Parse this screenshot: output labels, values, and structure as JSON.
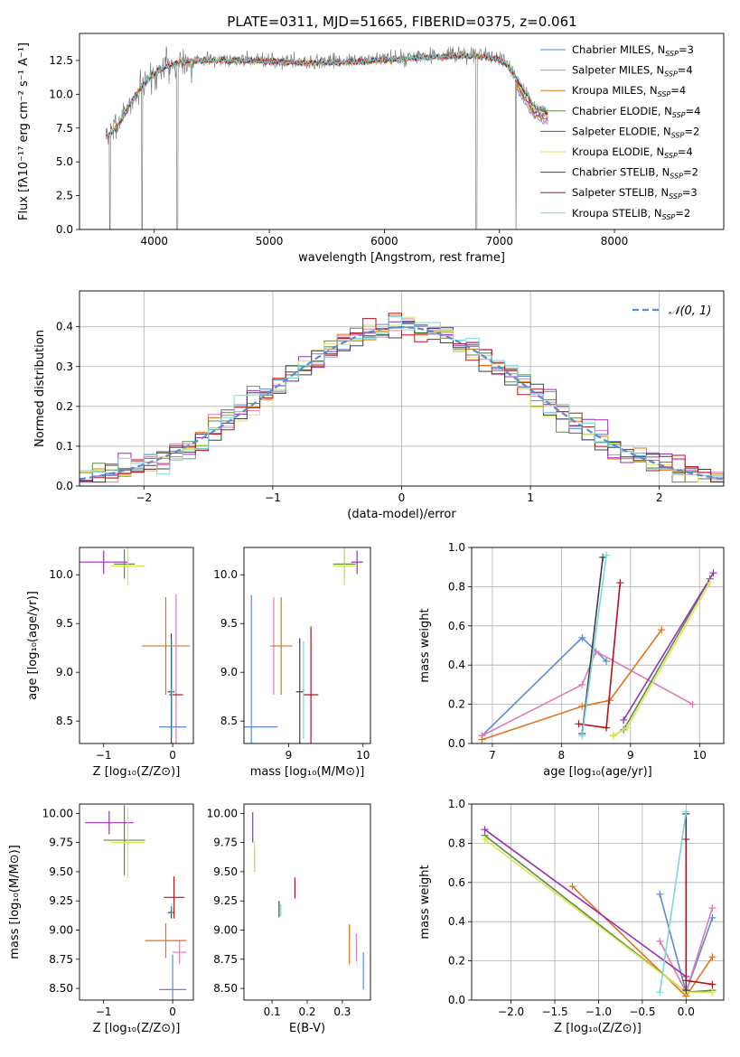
{
  "figure": {
    "title": "PLATE=0311, MJD=51665, FIBERID=0375, z=0.061"
  },
  "colors": {
    "Chabrier MILES": "#5b8ad6",
    "Salpeter MILES": "#e27ab8",
    "Kroupa MILES": "#e0761c",
    "Chabrier ELODIE": "#5e8a4e",
    "Salpeter ELODIE": "#9a2fb5",
    "Kroupa ELODIE": "#d9e84f",
    "Chabrier STELIB": "#404040",
    "Salpeter STELIB": "#b5121b",
    "Kroupa STELIB": "#7ad8dc",
    "data": "#808080",
    "normal": "#5b8ad6"
  },
  "chart_data": [
    {
      "id": "spectrum",
      "type": "line",
      "xlabel": "wavelength [Angstrom, rest frame]",
      "ylabel": "Flux [fλ10⁻¹⁷ erg cm⁻² s⁻¹ A⁻¹]",
      "xlim": [
        3350,
        8950
      ],
      "ylim": [
        0,
        14.5
      ],
      "xticks": [
        4000,
        5000,
        6000,
        7000,
        8000
      ],
      "yticks": [
        0.0,
        2.5,
        5.0,
        7.5,
        10.0,
        12.5
      ],
      "legend": "top-right",
      "legend_entries": [
        {
          "model": "Chabrier MILES",
          "nssp": "3"
        },
        {
          "model": "Salpeter MILES",
          "nssp": "4"
        },
        {
          "model": "Kroupa MILES",
          "nssp": "4"
        },
        {
          "model": "Chabrier ELODIE",
          "nssp": "4"
        },
        {
          "model": "Salpeter ELODIE",
          "nssp": "2"
        },
        {
          "model": "Kroupa ELODIE",
          "nssp": "4"
        },
        {
          "model": "Chabrier STELIB",
          "nssp": "2"
        },
        {
          "model": "Salpeter STELIB",
          "nssp": "3"
        },
        {
          "model": "Kroupa STELIB",
          "nssp": "2"
        }
      ],
      "continuum": {
        "wavelength": [
          3600,
          3700,
          3800,
          3900,
          4000,
          4100,
          4200,
          4300,
          4500,
          4700,
          5000,
          5300,
          5600,
          6000,
          6400,
          6600,
          6800,
          7000,
          7100,
          7200,
          7300,
          7420
        ],
        "flux": [
          7.0,
          8.0,
          9.5,
          10.8,
          11.6,
          12.1,
          12.4,
          12.5,
          12.6,
          12.6,
          12.5,
          12.4,
          12.4,
          12.6,
          12.8,
          12.9,
          12.9,
          12.7,
          12.0,
          10.3,
          9.0,
          8.5
        ]
      }
    },
    {
      "id": "residuals",
      "type": "histogram",
      "xlabel": "(data-model)/error",
      "ylabel": "Normed distribution",
      "xlim": [
        -2.5,
        2.5
      ],
      "ylim": [
        0,
        0.49
      ],
      "xticks": [
        -2,
        -1,
        0,
        1,
        2
      ],
      "yticks": [
        0.0,
        0.1,
        0.2,
        0.3,
        0.4
      ],
      "legend": "top-right",
      "normal_label": "𝒩(0, 1)",
      "bins": 50,
      "grid": true
    },
    {
      "id": "age_vs_Z",
      "type": "errorbar",
      "xlabel": "Z [log₁₀(Z/Z⊙)]",
      "ylabel": "age  [log₁₀(age/yr)]",
      "xlim": [
        -1.35,
        0.3
      ],
      "ylim": [
        8.27,
        10.28
      ],
      "xticks": [
        -1,
        0
      ],
      "yticks": [
        8.5,
        9.0,
        9.5,
        10.0
      ],
      "points": [
        {
          "model": "Chabrier MILES",
          "x": 0.0,
          "y": 8.44,
          "xerr": 0.2,
          "yerr": 0.0
        },
        {
          "model": "Salpeter MILES",
          "x": 0.05,
          "y": 8.8,
          "xerr": 0.0,
          "yerr": 1.0
        },
        {
          "model": "Kroupa MILES",
          "x": -0.1,
          "y": 9.27,
          "xerr": 0.35,
          "yerr": 0.5
        },
        {
          "model": "Chabrier ELODIE",
          "x": -0.7,
          "y": 10.11,
          "xerr": 0.15,
          "yerr": 0.15
        },
        {
          "model": "Salpeter ELODIE",
          "x": -1.0,
          "y": 10.13,
          "xerr": 0.35,
          "yerr": 0.12
        },
        {
          "model": "Kroupa ELODIE",
          "x": -0.65,
          "y": 10.09,
          "xerr": 0.25,
          "yerr": 0.2
        },
        {
          "model": "Chabrier STELIB",
          "x": -0.02,
          "y": 8.8,
          "xerr": 0.05,
          "yerr": 0.6
        },
        {
          "model": "Salpeter STELIB",
          "x": 0.05,
          "y": 8.77,
          "xerr": 0.1,
          "yerr": 0.0
        },
        {
          "model": "Kroupa STELIB",
          "x": -0.01,
          "y": 8.82,
          "xerr": 0.02,
          "yerr": 0.5
        }
      ]
    },
    {
      "id": "age_vs_mass",
      "type": "errorbar",
      "xlabel": "mass [log₁₀(M/M⊙)]",
      "ylabel": "",
      "xlim": [
        8.4,
        10.1
      ],
      "ylim": [
        8.27,
        10.28
      ],
      "xticks": [
        9,
        10
      ],
      "yticks": [
        8.5,
        9.0,
        9.5,
        10.0
      ],
      "points": [
        {
          "model": "Chabrier MILES",
          "x": 8.5,
          "y": 8.44,
          "xerr": 0.35,
          "yerr": 1.35
        },
        {
          "model": "Salpeter MILES",
          "x": 8.8,
          "y": 9.27,
          "xerr": 0.0,
          "yerr": 0.5
        },
        {
          "model": "Kroupa MILES",
          "x": 8.9,
          "y": 9.27,
          "xerr": 0.15,
          "yerr": 0.5
        },
        {
          "model": "Chabrier ELODIE",
          "x": 9.75,
          "y": 10.11,
          "xerr": 0.15,
          "yerr": 0.15
        },
        {
          "model": "Salpeter ELODIE",
          "x": 9.92,
          "y": 10.13,
          "xerr": 0.08,
          "yerr": 0.12
        },
        {
          "model": "Kroupa ELODIE",
          "x": 9.75,
          "y": 10.09,
          "xerr": 0.15,
          "yerr": 0.2
        },
        {
          "model": "Chabrier STELIB",
          "x": 9.15,
          "y": 8.8,
          "xerr": 0.05,
          "yerr": 0.55
        },
        {
          "model": "Salpeter STELIB",
          "x": 9.3,
          "y": 8.77,
          "xerr": 0.1,
          "yerr": 0.7
        },
        {
          "model": "Kroupa STELIB",
          "x": 9.2,
          "y": 8.82,
          "xerr": 0.02,
          "yerr": 0.5
        }
      ]
    },
    {
      "id": "weight_vs_age",
      "type": "line",
      "xlabel": "age  [log₁₀(age/yr)]",
      "ylabel": "mass weight",
      "xlim": [
        6.7,
        10.35
      ],
      "ylim": [
        0.0,
        1.0
      ],
      "xticks": [
        7,
        8,
        9,
        10
      ],
      "yticks": [
        0.0,
        0.2,
        0.4,
        0.6,
        0.8,
        1.0
      ],
      "grid": true,
      "series": [
        {
          "model": "Chabrier MILES",
          "x": [
            6.85,
            8.3,
            8.65
          ],
          "y": [
            0.04,
            0.54,
            0.42
          ]
        },
        {
          "model": "Salpeter MILES",
          "x": [
            6.85,
            8.3,
            8.5,
            9.9
          ],
          "y": [
            0.04,
            0.3,
            0.47,
            0.2
          ]
        },
        {
          "model": "Kroupa MILES",
          "x": [
            6.85,
            8.3,
            8.7,
            9.45
          ],
          "y": [
            0.02,
            0.19,
            0.22,
            0.58
          ]
        },
        {
          "model": "Chabrier ELODIE",
          "x": [
            8.75,
            8.9,
            10.15
          ],
          "y": [
            0.04,
            0.07,
            0.84
          ]
        },
        {
          "model": "Salpeter ELODIE",
          "x": [
            8.9,
            10.2
          ],
          "y": [
            0.12,
            0.87
          ]
        },
        {
          "model": "Kroupa ELODIE",
          "x": [
            8.75,
            8.95,
            10.15
          ],
          "y": [
            0.04,
            0.08,
            0.82
          ]
        },
        {
          "model": "Chabrier STELIB",
          "x": [
            8.3,
            8.6
          ],
          "y": [
            0.05,
            0.95
          ]
        },
        {
          "model": "Salpeter STELIB",
          "x": [
            8.25,
            8.65,
            8.85
          ],
          "y": [
            0.1,
            0.08,
            0.82
          ]
        },
        {
          "model": "Kroupa STELIB",
          "x": [
            8.3,
            8.65
          ],
          "y": [
            0.04,
            0.96
          ]
        }
      ]
    },
    {
      "id": "mass_vs_Z",
      "type": "errorbar",
      "xlabel": "Z [log₁₀(Z/Z⊙)]",
      "ylabel": "mass [log₁₀(M/M⊙)]",
      "xlim": [
        -1.35,
        0.3
      ],
      "ylim": [
        8.4,
        10.08
      ],
      "xticks": [
        -1,
        0
      ],
      "yticks": [
        8.5,
        8.75,
        9.0,
        9.25,
        9.5,
        9.75,
        10.0
      ],
      "points": [
        {
          "model": "Chabrier MILES",
          "x": 0.0,
          "y": 8.49,
          "xerr": 0.2,
          "yerr": 0.3
        },
        {
          "model": "Salpeter MILES",
          "x": 0.1,
          "y": 8.81,
          "xerr": 0.1,
          "yerr": 0.1
        },
        {
          "model": "Kroupa MILES",
          "x": -0.1,
          "y": 8.91,
          "xerr": 0.3,
          "yerr": 0.15
        },
        {
          "model": "Chabrier ELODIE",
          "x": -0.7,
          "y": 9.77,
          "xerr": 0.3,
          "yerr": 0.3
        },
        {
          "model": "Salpeter ELODIE",
          "x": -0.92,
          "y": 9.92,
          "xerr": 0.35,
          "yerr": 0.1
        },
        {
          "model": "Kroupa ELODIE",
          "x": -0.65,
          "y": 9.75,
          "xerr": 0.25,
          "yerr": 0.3
        },
        {
          "model": "Chabrier STELIB",
          "x": -0.02,
          "y": 9.15,
          "xerr": 0.05,
          "yerr": 0.05
        },
        {
          "model": "Salpeter STELIB",
          "x": 0.02,
          "y": 9.28,
          "xerr": 0.15,
          "yerr": 0.18
        },
        {
          "model": "Kroupa STELIB",
          "x": -0.01,
          "y": 9.18,
          "xerr": 0.02,
          "yerr": 0.05
        }
      ]
    },
    {
      "id": "mass_vs_ebv",
      "type": "errorbar",
      "xlabel": "E(B-V)",
      "ylabel": "",
      "xlim": [
        0.02,
        0.38
      ],
      "ylim": [
        8.4,
        10.08
      ],
      "xticks": [
        0.1,
        0.2,
        0.3
      ],
      "yticks": [
        8.5,
        8.75,
        9.0,
        9.25,
        9.5,
        9.75,
        10.0
      ],
      "points": [
        {
          "model": "Chabrier MILES",
          "x": 0.36,
          "y": 8.65,
          "xerr": 0.0,
          "yerr": 0.16
        },
        {
          "model": "Salpeter MILES",
          "x": 0.34,
          "y": 8.85,
          "xerr": 0.0,
          "yerr": 0.12
        },
        {
          "model": "Kroupa MILES",
          "x": 0.32,
          "y": 8.88,
          "xerr": 0.0,
          "yerr": 0.17
        },
        {
          "model": "Chabrier ELODIE",
          "x": 0.05,
          "y": 9.6,
          "xerr": 0.0,
          "yerr": 0.1
        },
        {
          "model": "Salpeter ELODIE",
          "x": 0.045,
          "y": 9.88,
          "xerr": 0.0,
          "yerr": 0.13
        },
        {
          "model": "Kroupa ELODIE",
          "x": 0.05,
          "y": 9.63,
          "xerr": 0.0,
          "yerr": 0.13
        },
        {
          "model": "Chabrier STELIB",
          "x": 0.12,
          "y": 9.18,
          "xerr": 0.0,
          "yerr": 0.07
        },
        {
          "model": "Salpeter STELIB",
          "x": 0.165,
          "y": 9.36,
          "xerr": 0.0,
          "yerr": 0.09
        },
        {
          "model": "Kroupa STELIB",
          "x": 0.125,
          "y": 9.17,
          "xerr": 0.0,
          "yerr": 0.05
        }
      ]
    },
    {
      "id": "weight_vs_Z",
      "type": "line",
      "xlabel": "Z [log₁₀(Z/Z⊙)]",
      "ylabel": "mass weight",
      "xlim": [
        -2.45,
        0.43
      ],
      "ylim": [
        0.0,
        1.0
      ],
      "xticks": [
        -2.0,
        -1.5,
        -1.0,
        -0.5,
        0.0
      ],
      "yticks": [
        0.0,
        0.2,
        0.4,
        0.6,
        0.8,
        1.0
      ],
      "grid": true,
      "series": [
        {
          "model": "Chabrier MILES",
          "x": [
            -0.3,
            0.0,
            0.3
          ],
          "y": [
            0.54,
            0.04,
            0.42
          ]
        },
        {
          "model": "Salpeter MILES",
          "x": [
            -0.3,
            0.0,
            0.3
          ],
          "y": [
            0.3,
            0.04,
            0.47
          ]
        },
        {
          "model": "Kroupa MILES",
          "x": [
            -1.3,
            0.0,
            0.3
          ],
          "y": [
            0.58,
            0.02,
            0.22
          ]
        },
        {
          "model": "Chabrier ELODIE",
          "x": [
            -2.3,
            0.0,
            0.3
          ],
          "y": [
            0.84,
            0.04,
            0.05
          ]
        },
        {
          "model": "Salpeter ELODIE",
          "x": [
            -2.3,
            0.0
          ],
          "y": [
            0.87,
            0.12
          ]
        },
        {
          "model": "Kroupa ELODIE",
          "x": [
            -2.3,
            0.0,
            0.3
          ],
          "y": [
            0.82,
            0.04,
            0.04
          ]
        },
        {
          "model": "Chabrier STELIB",
          "x": [
            0.0,
            0.0
          ],
          "y": [
            0.05,
            0.95
          ]
        },
        {
          "model": "Salpeter STELIB",
          "x": [
            0.0,
            0.0,
            0.3
          ],
          "y": [
            0.82,
            0.1,
            0.08
          ]
        },
        {
          "model": "Kroupa STELIB",
          "x": [
            -0.3,
            0.0
          ],
          "y": [
            0.04,
            0.96
          ]
        }
      ]
    }
  ]
}
